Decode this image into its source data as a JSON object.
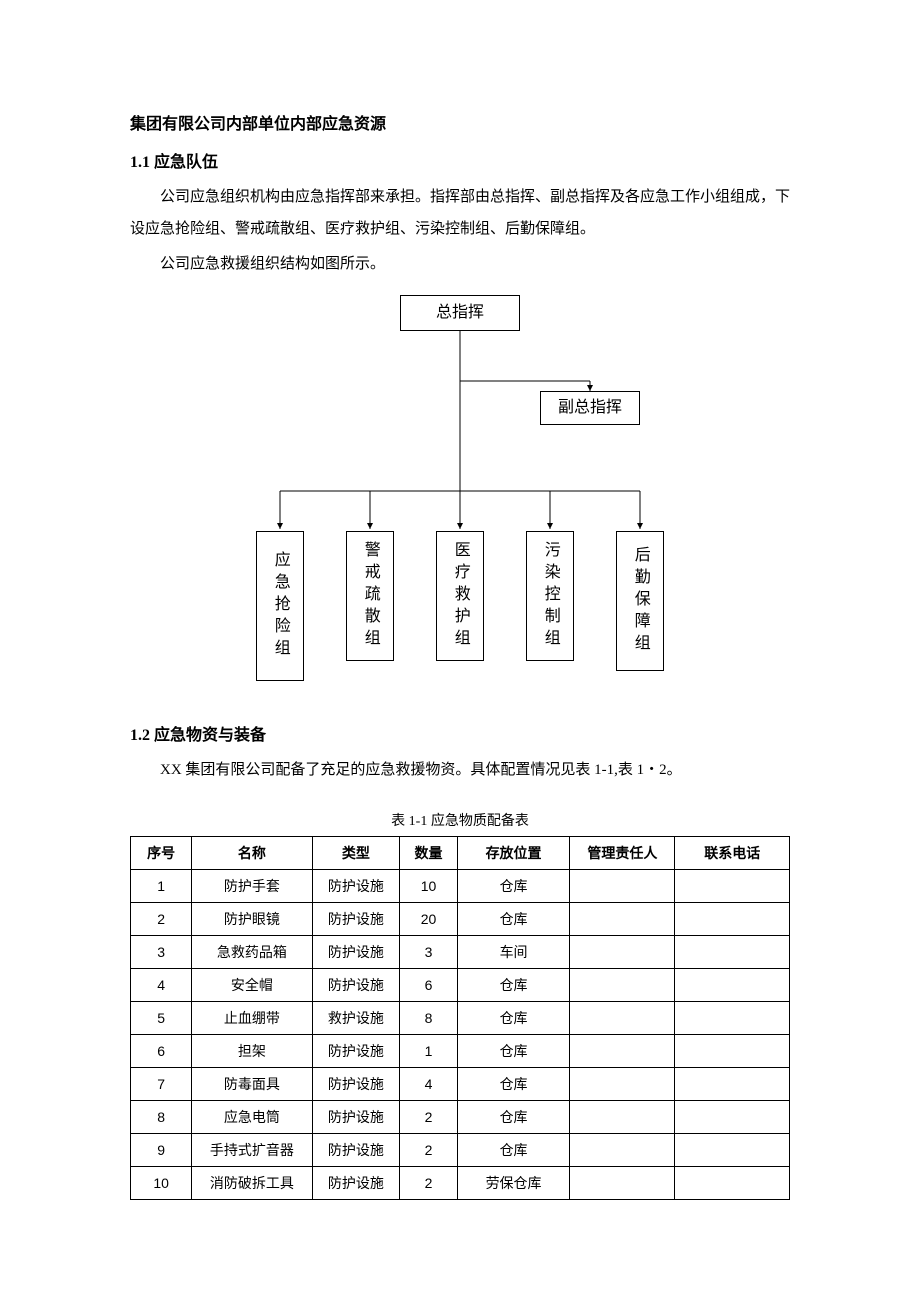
{
  "title": "集团有限公司内部单位内部应急资源",
  "section1": {
    "heading": "1.1  应急队伍",
    "p1": "公司应急组织机构由应急指挥部来承担。指挥部由总指挥、副总指挥及各应急工作小组组成，下设应急抢险组、警戒疏散组、医疗救护组、污染控制组、后勤保障组。",
    "p2": "公司应急救援组织结构如图所示。"
  },
  "orgchart": {
    "top": "总指挥",
    "deputy": "副总指挥",
    "groups": [
      "应急抢险组",
      "警戒疏散组",
      "医疗救护组",
      "污染控制组",
      "后勤保障组"
    ],
    "border_color": "#000000",
    "arrow_color": "#000000"
  },
  "section2": {
    "heading": "1.2  应急物资与装备",
    "p1": "XX 集团有限公司配备了充足的应急救援物资。具体配置情况见表 1-1,表 1・2。"
  },
  "table1": {
    "caption": "表 1-1 应急物质配备表",
    "columns": [
      "序号",
      "名称",
      "类型",
      "数量",
      "存放位置",
      "管理责任人",
      "联系电话"
    ],
    "rows": [
      [
        "1",
        "防护手套",
        "防护设施",
        "10",
        "仓库",
        "",
        ""
      ],
      [
        "2",
        "防护眼镜",
        "防护设施",
        "20",
        "仓库",
        "",
        ""
      ],
      [
        "3",
        "急救药品箱",
        "防护设施",
        "3",
        "车间",
        "",
        ""
      ],
      [
        "4",
        "安全帽",
        "防护设施",
        "6",
        "仓库",
        "",
        ""
      ],
      [
        "5",
        "止血绷带",
        "救护设施",
        "8",
        "仓库",
        "",
        ""
      ],
      [
        "6",
        "担架",
        "防护设施",
        "1",
        "仓库",
        "",
        ""
      ],
      [
        "7",
        "防毒面具",
        "防护设施",
        "4",
        "仓库",
        "",
        ""
      ],
      [
        "8",
        "应急电筒",
        "防护设施",
        "2",
        "仓库",
        "",
        ""
      ],
      [
        "9",
        "手持式扩音器",
        "防护设施",
        "2",
        "仓库",
        "",
        ""
      ],
      [
        "10",
        "消防破拆工具",
        "防护设施",
        "2",
        "劳保仓库",
        "",
        ""
      ]
    ]
  }
}
